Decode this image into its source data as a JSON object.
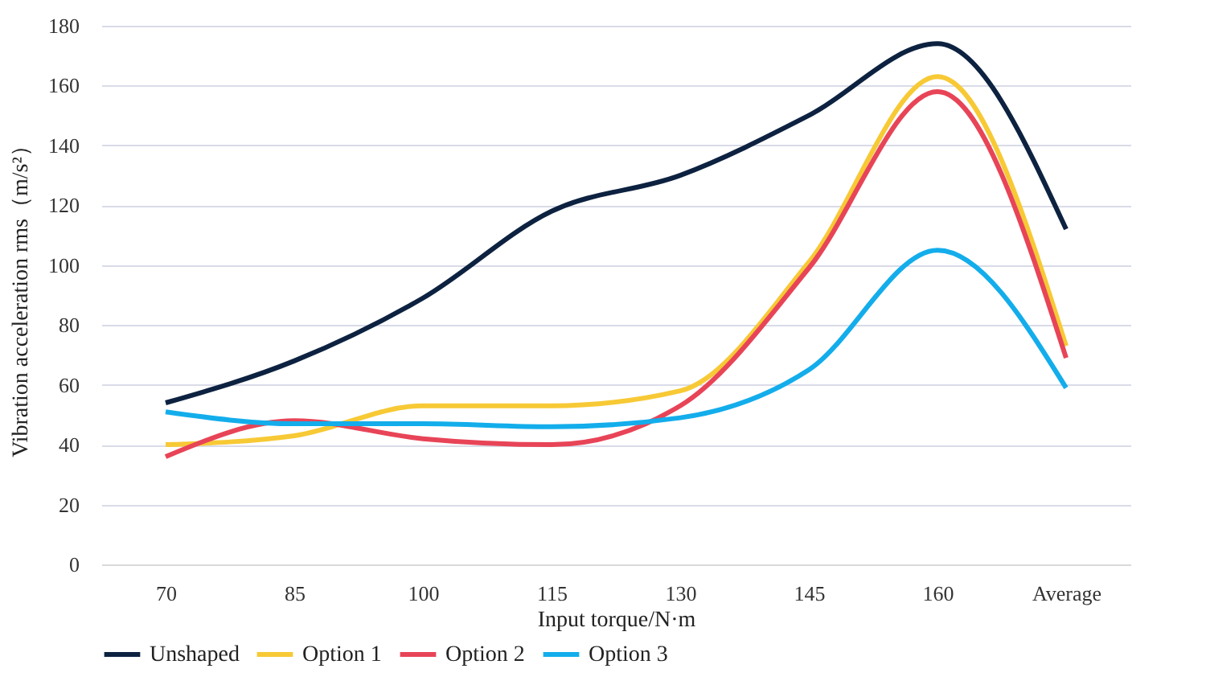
{
  "chart_data": {
    "type": "line",
    "xlabel": "Input torque/N·m",
    "ylabel": "Vibration acceleration rms（m/s²）",
    "categories": [
      "70",
      "85",
      "100",
      "115",
      "130",
      "145",
      "160",
      "Average"
    ],
    "series": [
      {
        "name": "Unshaped",
        "color": "#0d2240",
        "values": [
          54,
          68,
          89,
          118,
          130,
          150,
          174,
          112
        ]
      },
      {
        "name": "Option 1",
        "color": "#f7c935",
        "values": [
          40,
          43,
          53,
          53,
          58,
          101,
          163,
          73
        ]
      },
      {
        "name": "Option 2",
        "color": "#e84457",
        "values": [
          36,
          48,
          42,
          40,
          53,
          99,
          158,
          69
        ]
      },
      {
        "name": "Option 3",
        "color": "#13adeb",
        "values": [
          51,
          47,
          47,
          46,
          49,
          65,
          105,
          59
        ]
      }
    ],
    "ylim": [
      0,
      180
    ],
    "yticks": [
      0,
      20,
      40,
      60,
      80,
      100,
      120,
      140,
      160,
      180
    ],
    "grid": "y",
    "legend": "bottom",
    "marker": "none",
    "line_style": "solid"
  }
}
